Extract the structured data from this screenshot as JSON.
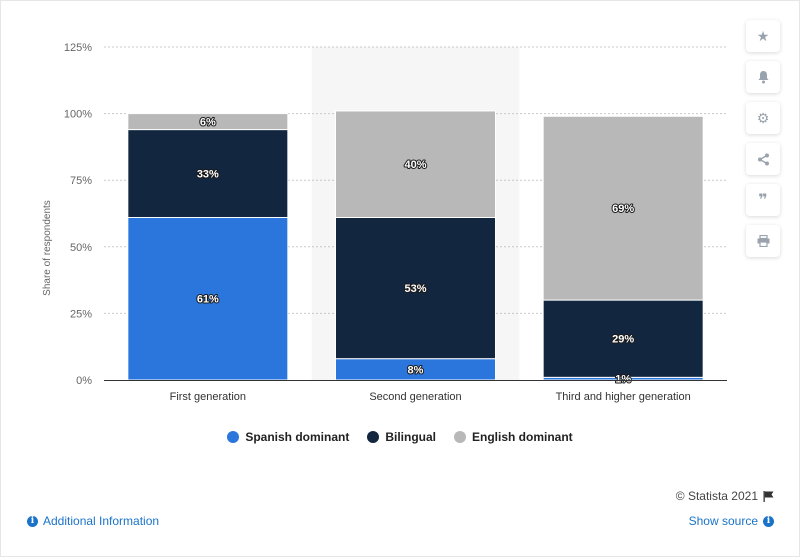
{
  "chart_data": {
    "type": "bar",
    "stacked": true,
    "categories": [
      "First generation",
      "Second generation",
      "Third and higher generation"
    ],
    "series": [
      {
        "name": "Spanish dominant",
        "color": "#2a76dd",
        "values": [
          61,
          8,
          1
        ],
        "labels": [
          "61%",
          "8%",
          "1%"
        ]
      },
      {
        "name": "Bilingual",
        "color": "#12263f",
        "values": [
          33,
          53,
          29
        ],
        "labels": [
          "33%",
          "53%",
          "29%"
        ]
      },
      {
        "name": "English dominant",
        "color": "#b8b8b8",
        "values": [
          6,
          40,
          69
        ],
        "labels": [
          "6%",
          "40%",
          "69%"
        ]
      }
    ],
    "ylabel": "Share of respondents",
    "ylim": [
      0,
      125
    ],
    "yticks": [
      "0%",
      "25%",
      "50%",
      "75%",
      "100%",
      "125%"
    ],
    "grid": true,
    "legend_position": "bottom",
    "highlighted_category": 1
  },
  "legend": {
    "items": [
      "Spanish dominant",
      "Bilingual",
      "English dominant"
    ]
  },
  "toolbar": {
    "icons": [
      "star-icon",
      "bell-icon",
      "gear-icon",
      "share-icon",
      "quote-icon",
      "print-icon"
    ]
  },
  "footer": {
    "credit": "© Statista 2021",
    "additional_info": "Additional Information",
    "show_source": "Show source"
  }
}
